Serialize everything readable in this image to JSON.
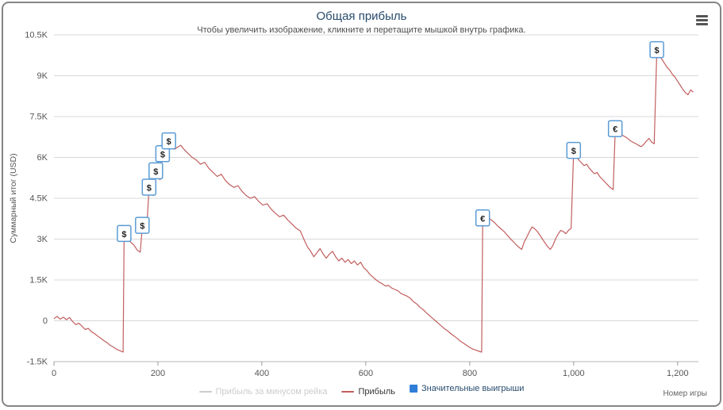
{
  "chart_data": {
    "type": "line",
    "title": "Общая прибыль",
    "subtitle": "Чтобы увеличить изображение, кликните и перетащите мышкой внутрь графика.",
    "xlabel": "Номер игры",
    "ylabel": "Суммарный итог (USD)",
    "xlim": [
      0,
      1240
    ],
    "ylim": [
      -1500,
      10500
    ],
    "grid": true,
    "legend_position": "bottom",
    "x_ticks": [
      0,
      200,
      400,
      600,
      800,
      1000,
      1200
    ],
    "x_tick_labels": [
      "0",
      "200",
      "400",
      "600",
      "800",
      "1,000",
      "1,200"
    ],
    "y_ticks": [
      -1500,
      0,
      1500,
      3000,
      4500,
      6000,
      7500,
      9000,
      10500
    ],
    "y_tick_labels": [
      "-1.5K",
      "0",
      "1.5K",
      "3K",
      "4.5K",
      "6K",
      "7.5K",
      "9K",
      "10.5K"
    ],
    "colors": {
      "line": "#c25e5e",
      "disabled": "#cccccc",
      "marker_border": "#5b9bd5",
      "marker_text": "#222222",
      "grid": "#d8d8d8",
      "axis_line": "#b4b4b4",
      "tick": "#999999",
      "label": "#555555",
      "title": "#274b6d",
      "legend_blue": "#2f7ed8"
    },
    "legend": [
      {
        "label": "Прибыль за минусом рейка",
        "type": "line",
        "color": "#cccccc",
        "text_color": "#cccccc",
        "disabled": true
      },
      {
        "label": "Прибыль",
        "type": "line",
        "color": "#c25e5e",
        "text_color": "#333333",
        "disabled": false
      },
      {
        "label": "Значительные выигрыши",
        "type": "square",
        "color": "#2f7ed8",
        "text_color": "#274b6d",
        "disabled": false
      }
    ],
    "markers": [
      {
        "x": 135,
        "y": 3150,
        "symbol": "$"
      },
      {
        "x": 170,
        "y": 3450,
        "symbol": "$"
      },
      {
        "x": 183,
        "y": 4850,
        "symbol": "$"
      },
      {
        "x": 196,
        "y": 5450,
        "symbol": "$"
      },
      {
        "x": 209,
        "y": 6080,
        "symbol": "$"
      },
      {
        "x": 221,
        "y": 6550,
        "symbol": "$"
      },
      {
        "x": 825,
        "y": 3720,
        "symbol": "€"
      },
      {
        "x": 1000,
        "y": 6200,
        "symbol": "$"
      },
      {
        "x": 1080,
        "y": 7000,
        "symbol": "€"
      },
      {
        "x": 1160,
        "y": 9900,
        "symbol": "$"
      }
    ],
    "series": [
      {
        "name": "Прибыль за минусом рейка",
        "color": "#cccccc",
        "visible": false,
        "points": []
      },
      {
        "name": "Прибыль",
        "color": "#c25e5e",
        "visible": true,
        "points": [
          [
            0,
            80
          ],
          [
            6,
            160
          ],
          [
            12,
            60
          ],
          [
            18,
            130
          ],
          [
            24,
            40
          ],
          [
            30,
            120
          ],
          [
            36,
            -30
          ],
          [
            42,
            -140
          ],
          [
            48,
            -90
          ],
          [
            54,
            -200
          ],
          [
            60,
            -320
          ],
          [
            66,
            -280
          ],
          [
            72,
            -400
          ],
          [
            78,
            -470
          ],
          [
            84,
            -560
          ],
          [
            90,
            -640
          ],
          [
            96,
            -730
          ],
          [
            102,
            -800
          ],
          [
            108,
            -900
          ],
          [
            114,
            -960
          ],
          [
            120,
            -1040
          ],
          [
            126,
            -1090
          ],
          [
            133,
            -1150
          ],
          [
            135,
            3150
          ],
          [
            140,
            3050
          ],
          [
            147,
            2900
          ],
          [
            154,
            2780
          ],
          [
            160,
            2600
          ],
          [
            166,
            2520
          ],
          [
            170,
            3450
          ],
          [
            174,
            3350
          ],
          [
            178,
            3280
          ],
          [
            183,
            4850
          ],
          [
            187,
            4690
          ],
          [
            191,
            4600
          ],
          [
            196,
            5450
          ],
          [
            200,
            5280
          ],
          [
            204,
            5180
          ],
          [
            209,
            6080
          ],
          [
            213,
            5950
          ],
          [
            217,
            5900
          ],
          [
            221,
            6550
          ],
          [
            226,
            6400
          ],
          [
            232,
            6300
          ],
          [
            238,
            6380
          ],
          [
            244,
            6450
          ],
          [
            250,
            6300
          ],
          [
            258,
            6150
          ],
          [
            266,
            6000
          ],
          [
            274,
            5900
          ],
          [
            282,
            5750
          ],
          [
            290,
            5820
          ],
          [
            298,
            5600
          ],
          [
            306,
            5450
          ],
          [
            314,
            5300
          ],
          [
            322,
            5380
          ],
          [
            330,
            5150
          ],
          [
            338,
            5000
          ],
          [
            346,
            4900
          ],
          [
            354,
            4960
          ],
          [
            362,
            4750
          ],
          [
            370,
            4600
          ],
          [
            378,
            4500
          ],
          [
            386,
            4560
          ],
          [
            394,
            4380
          ],
          [
            402,
            4250
          ],
          [
            410,
            4300
          ],
          [
            418,
            4100
          ],
          [
            426,
            3950
          ],
          [
            434,
            3820
          ],
          [
            442,
            3880
          ],
          [
            450,
            3700
          ],
          [
            458,
            3550
          ],
          [
            466,
            3400
          ],
          [
            474,
            3300
          ],
          [
            482,
            2950
          ],
          [
            488,
            2700
          ],
          [
            494,
            2550
          ],
          [
            500,
            2350
          ],
          [
            506,
            2500
          ],
          [
            512,
            2650
          ],
          [
            518,
            2450
          ],
          [
            524,
            2300
          ],
          [
            530,
            2450
          ],
          [
            536,
            2550
          ],
          [
            542,
            2350
          ],
          [
            548,
            2200
          ],
          [
            554,
            2300
          ],
          [
            560,
            2150
          ],
          [
            566,
            2250
          ],
          [
            572,
            2100
          ],
          [
            578,
            2200
          ],
          [
            584,
            2050
          ],
          [
            590,
            2150
          ],
          [
            596,
            1950
          ],
          [
            602,
            1850
          ],
          [
            608,
            1700
          ],
          [
            614,
            1600
          ],
          [
            620,
            1500
          ],
          [
            626,
            1420
          ],
          [
            632,
            1350
          ],
          [
            638,
            1280
          ],
          [
            644,
            1300
          ],
          [
            650,
            1200
          ],
          [
            656,
            1150
          ],
          [
            662,
            1100
          ],
          [
            668,
            1000
          ],
          [
            674,
            950
          ],
          [
            680,
            900
          ],
          [
            686,
            820
          ],
          [
            692,
            700
          ],
          [
            698,
            620
          ],
          [
            704,
            500
          ],
          [
            710,
            420
          ],
          [
            716,
            300
          ],
          [
            722,
            200
          ],
          [
            728,
            100
          ],
          [
            734,
            0
          ],
          [
            740,
            -100
          ],
          [
            746,
            -200
          ],
          [
            752,
            -300
          ],
          [
            758,
            -380
          ],
          [
            764,
            -480
          ],
          [
            770,
            -560
          ],
          [
            776,
            -650
          ],
          [
            782,
            -750
          ],
          [
            788,
            -820
          ],
          [
            794,
            -900
          ],
          [
            800,
            -980
          ],
          [
            806,
            -1040
          ],
          [
            812,
            -1080
          ],
          [
            818,
            -1120
          ],
          [
            823,
            -1150
          ],
          [
            825,
            3650
          ],
          [
            830,
            3720
          ],
          [
            836,
            3780
          ],
          [
            842,
            3700
          ],
          [
            848,
            3600
          ],
          [
            854,
            3480
          ],
          [
            860,
            3380
          ],
          [
            866,
            3280
          ],
          [
            872,
            3150
          ],
          [
            878,
            3020
          ],
          [
            884,
            2900
          ],
          [
            890,
            2780
          ],
          [
            896,
            2680
          ],
          [
            900,
            2620
          ],
          [
            905,
            2900
          ],
          [
            910,
            3080
          ],
          [
            915,
            3280
          ],
          [
            920,
            3450
          ],
          [
            925,
            3380
          ],
          [
            930,
            3280
          ],
          [
            935,
            3150
          ],
          [
            940,
            3000
          ],
          [
            945,
            2860
          ],
          [
            950,
            2720
          ],
          [
            955,
            2620
          ],
          [
            960,
            2760
          ],
          [
            965,
            3000
          ],
          [
            970,
            3180
          ],
          [
            975,
            3320
          ],
          [
            980,
            3280
          ],
          [
            985,
            3200
          ],
          [
            990,
            3320
          ],
          [
            995,
            3400
          ],
          [
            1000,
            6200
          ],
          [
            1005,
            6050
          ],
          [
            1010,
            5900
          ],
          [
            1015,
            5800
          ],
          [
            1020,
            5700
          ],
          [
            1025,
            5750
          ],
          [
            1030,
            5600
          ],
          [
            1035,
            5500
          ],
          [
            1040,
            5400
          ],
          [
            1045,
            5450
          ],
          [
            1050,
            5300
          ],
          [
            1055,
            5200
          ],
          [
            1060,
            5100
          ],
          [
            1065,
            5000
          ],
          [
            1070,
            4900
          ],
          [
            1076,
            4820
          ],
          [
            1080,
            7000
          ],
          [
            1085,
            6950
          ],
          [
            1090,
            6880
          ],
          [
            1095,
            6800
          ],
          [
            1100,
            6750
          ],
          [
            1105,
            6680
          ],
          [
            1110,
            6600
          ],
          [
            1115,
            6550
          ],
          [
            1120,
            6500
          ],
          [
            1125,
            6440
          ],
          [
            1130,
            6400
          ],
          [
            1135,
            6480
          ],
          [
            1140,
            6600
          ],
          [
            1145,
            6700
          ],
          [
            1150,
            6560
          ],
          [
            1155,
            6500
          ],
          [
            1160,
            9900
          ],
          [
            1165,
            9750
          ],
          [
            1170,
            9600
          ],
          [
            1175,
            9450
          ],
          [
            1180,
            9300
          ],
          [
            1185,
            9200
          ],
          [
            1190,
            9050
          ],
          [
            1195,
            8950
          ],
          [
            1200,
            8800
          ],
          [
            1205,
            8650
          ],
          [
            1210,
            8500
          ],
          [
            1215,
            8380
          ],
          [
            1220,
            8300
          ],
          [
            1225,
            8480
          ],
          [
            1230,
            8400
          ]
        ]
      }
    ]
  }
}
